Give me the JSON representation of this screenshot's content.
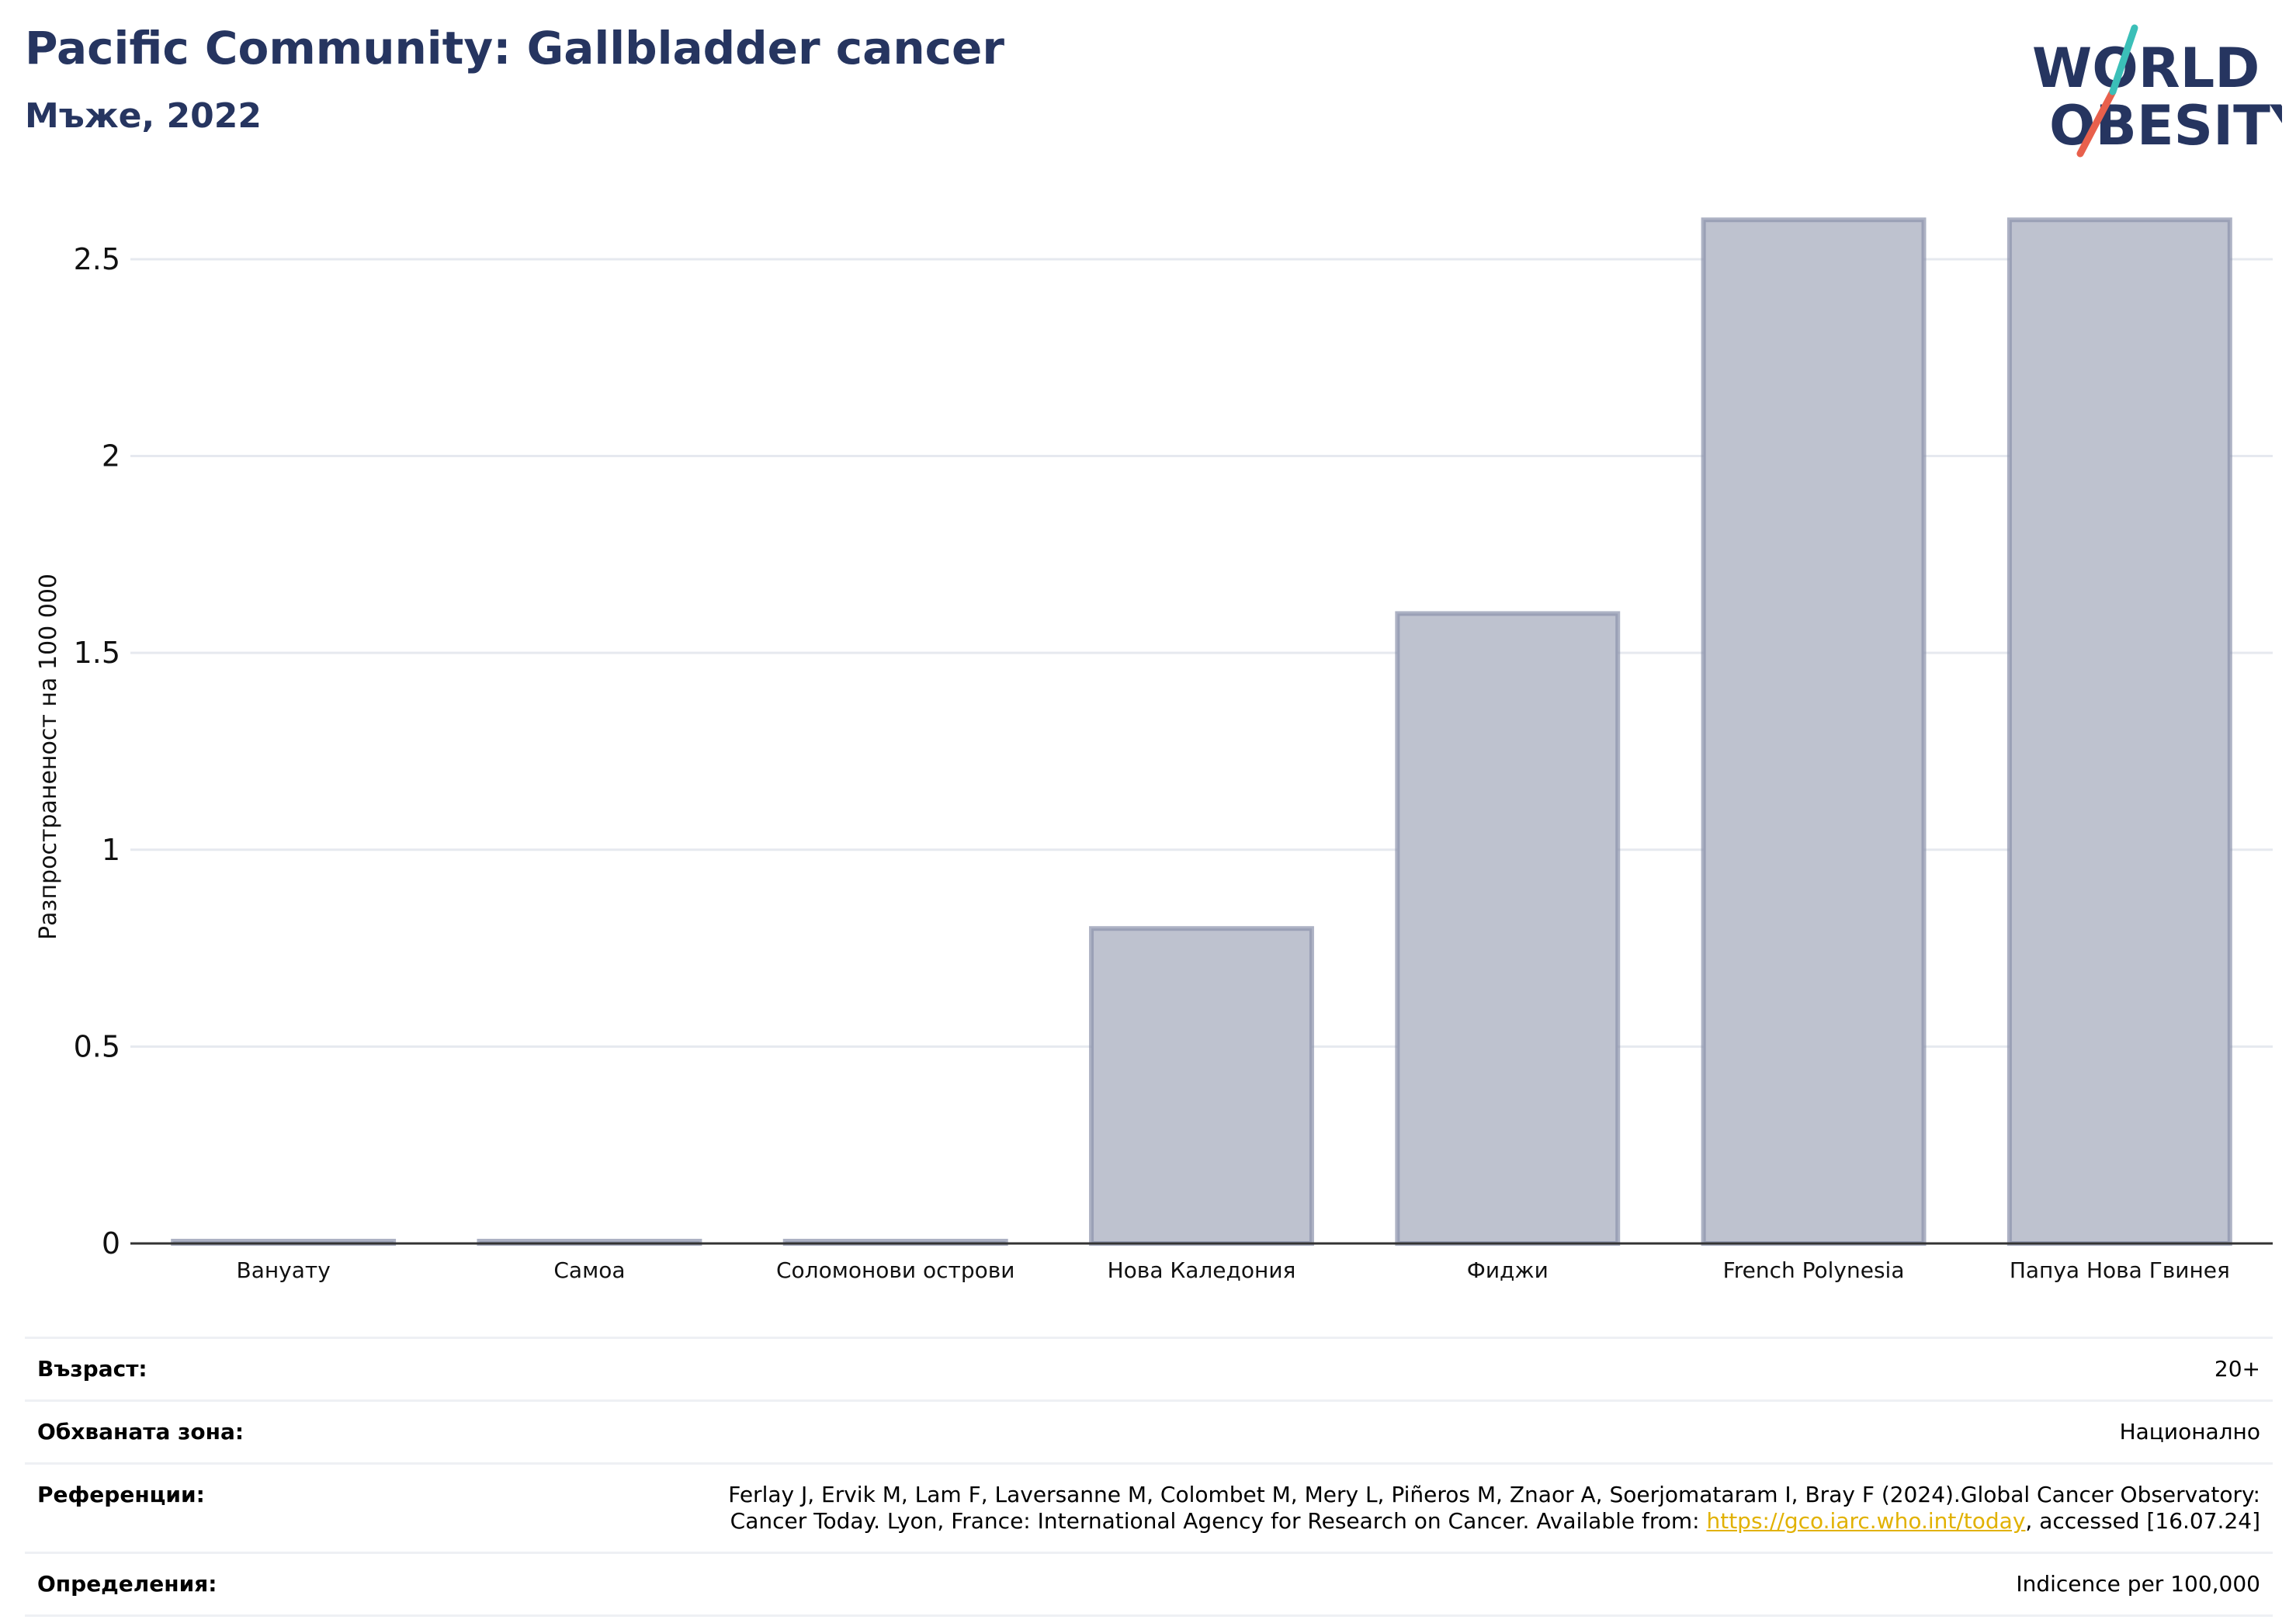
{
  "header": {
    "title": "Pacific Community: Gallbladder cancer",
    "subtitle": "Мъже, 2022"
  },
  "logo": {
    "line1": "WORLD",
    "line2": "OBESITY"
  },
  "colors": {
    "title": "#263560",
    "bar_fill": "#bec2cf",
    "bar_stroke": "#8a92ab",
    "grid": "#e6e9ef",
    "axis": "#333333",
    "link": "#e1b100",
    "logo_teal": "#3bbfb8",
    "logo_red": "#e8604c"
  },
  "chart_data": {
    "type": "bar",
    "title": "Pacific Community: Gallbladder cancer",
    "subtitle": "Мъже, 2022",
    "xlabel": "",
    "ylabel": "Разпространеност  на 100 000",
    "categories": [
      "Вануату",
      "Самоа",
      "Соломонови острови",
      "Нова Каледония",
      "Фиджи",
      "French Polynesia",
      "Папуа Нова Гвинея"
    ],
    "values": [
      0,
      0,
      0,
      0.8,
      1.6,
      2.6,
      2.6
    ],
    "yticks": [
      0,
      0.5,
      1,
      1.5,
      2,
      2.5
    ],
    "ytick_labels": [
      "0",
      "0.5",
      "1",
      "1.5",
      "2",
      "2.5"
    ],
    "ylim": [
      0,
      2.63
    ],
    "grid": true,
    "legend": "none"
  },
  "info": {
    "age_label": "Възраст:",
    "age_value": "20+",
    "area_label": "Обхваната зона:",
    "area_value": "Национално",
    "refs_label": "Референции:",
    "refs_text_1": "Ferlay J, Ervik M, Lam F, Laversanne M, Colombet M, Mery L, Piñeros M, Znaor A, Soerjomataram I, Bray F (2024).Global Cancer Observatory:",
    "refs_text_2": "Cancer Today. Lyon, France: International Agency for Research on Cancer. Available from: ",
    "refs_link": "https://gco.iarc.who.int/today",
    "refs_text_3": ", accessed [16.07.24]",
    "defs_label": "Определения:",
    "defs_value": "Indicence per 100,000"
  }
}
